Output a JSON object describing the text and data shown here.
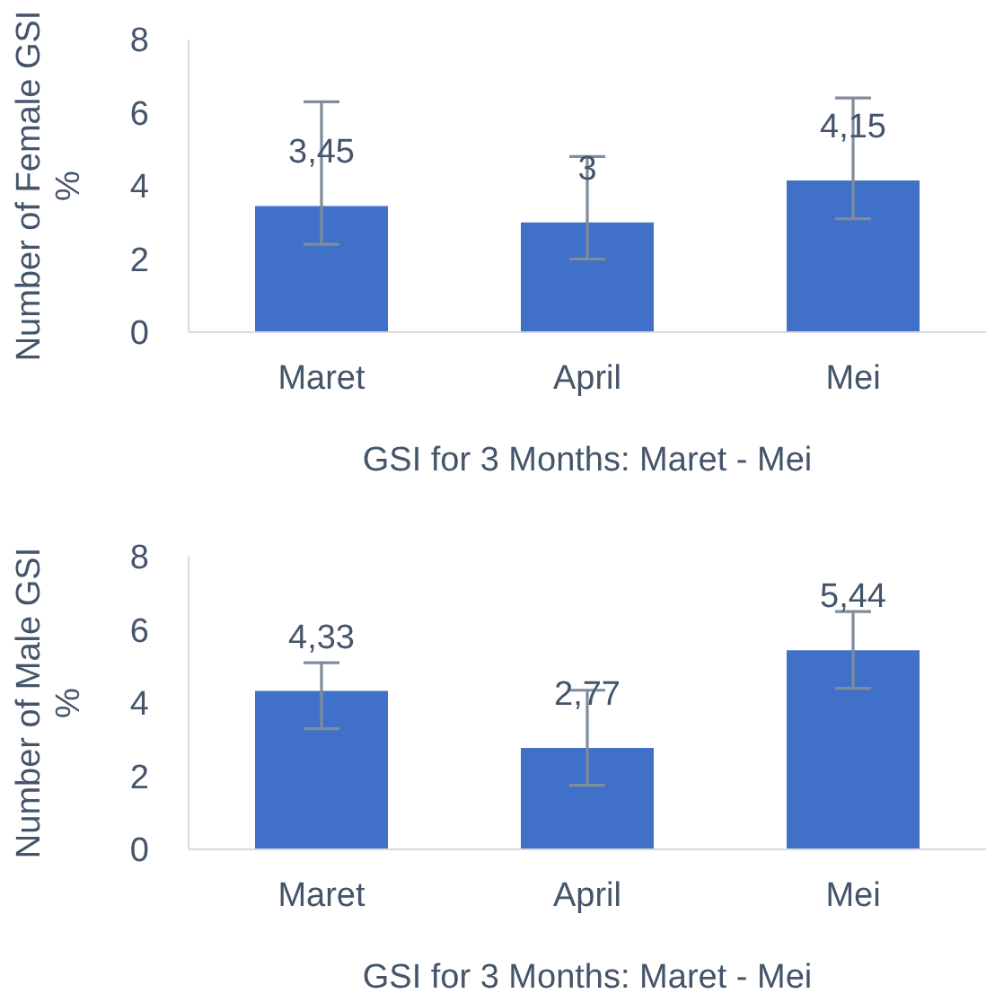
{
  "chart_data": [
    {
      "type": "bar",
      "xlabel": "GSI for 3 Months: Maret - Mei",
      "ylabel": "Number of Female GSI %",
      "categories": [
        "Maret",
        "April",
        "Mei"
      ],
      "values": [
        3.45,
        3,
        4.15
      ],
      "value_labels": [
        "3,45",
        "3",
        "4,15"
      ],
      "errors": [
        [
          2.4,
          6.3
        ],
        [
          2.0,
          4.8
        ],
        [
          3.1,
          6.4
        ]
      ],
      "color": "#4170c8",
      "ylim": [
        0,
        8
      ],
      "yticks": [
        0,
        2,
        4,
        6,
        8
      ],
      "grid": false,
      "legend": false
    },
    {
      "type": "bar",
      "xlabel": "GSI for 3 Months: Maret - Mei",
      "ylabel": "Number of Male GSI %",
      "categories": [
        "Maret",
        "April",
        "Mei"
      ],
      "values": [
        4.33,
        2.77,
        5.44
      ],
      "value_labels": [
        "4,33",
        "2,77",
        "5,44"
      ],
      "errors": [
        [
          3.3,
          5.1
        ],
        [
          1.75,
          4.35
        ],
        [
          4.4,
          6.5
        ]
      ],
      "color": "#4170c8",
      "ylim": [
        0,
        8
      ],
      "yticks": [
        0,
        2,
        4,
        6,
        8
      ],
      "grid": false,
      "legend": false
    }
  ]
}
